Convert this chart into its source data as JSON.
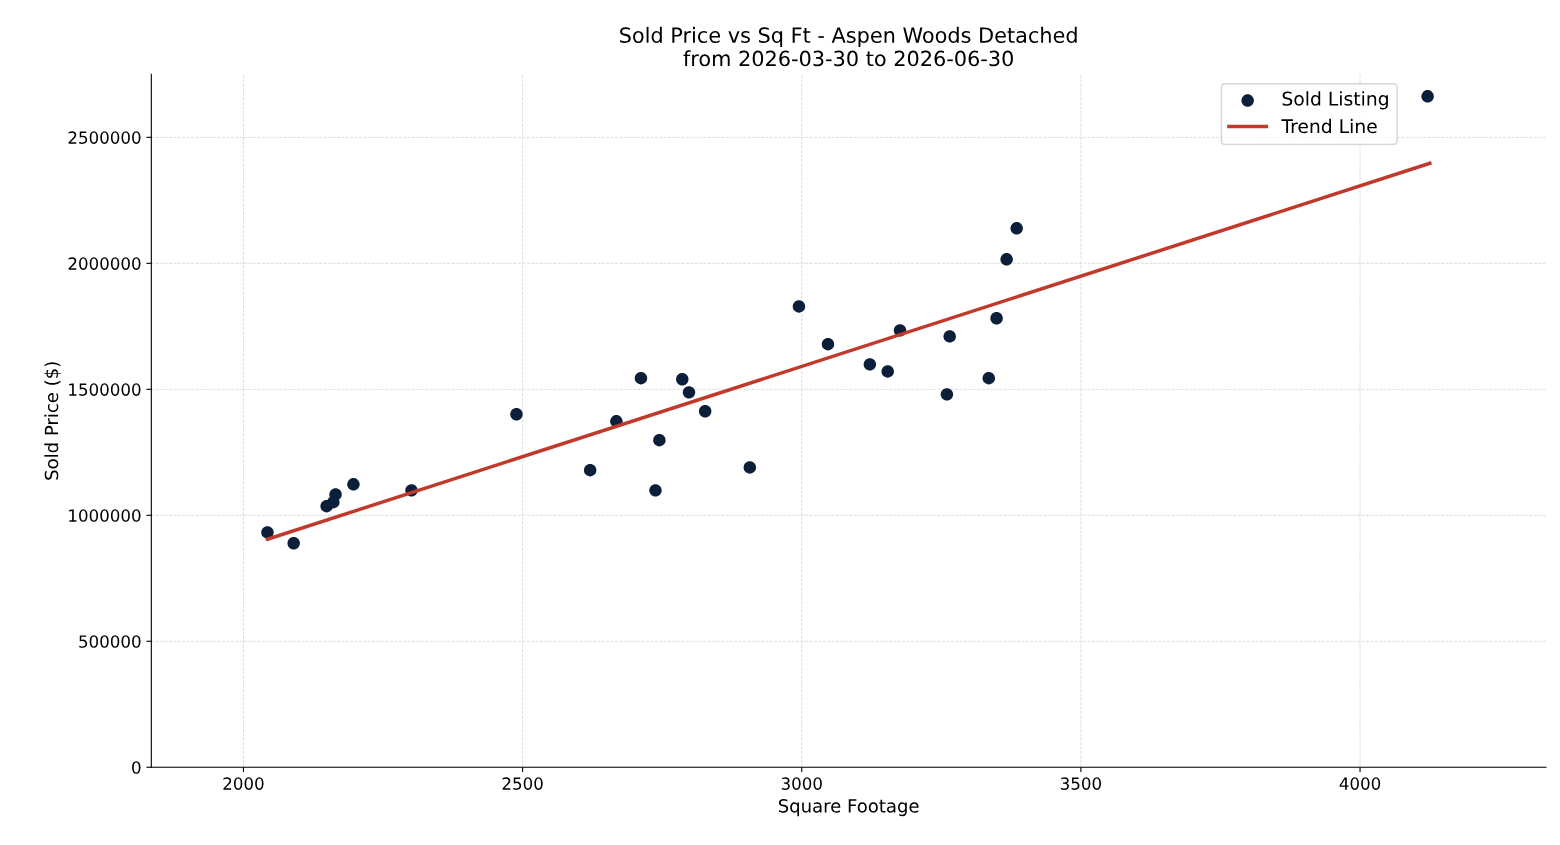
{
  "chart_data": {
    "type": "scatter",
    "title": "Sold Price vs Sq Ft - Aspen Woods Detached\nfrom 2026-03-30 to 2026-06-30",
    "xlabel": "Square Footage",
    "ylabel": "Sold Price ($)",
    "xlim": [
      1835,
      4333
    ],
    "xticks": [
      2000,
      2500,
      3000,
      3500,
      4000
    ],
    "ylim": [
      0,
      2750000
    ],
    "yticks": [
      0,
      500000,
      1000000,
      1500000,
      2000000,
      2500000
    ],
    "grid": true,
    "legend": "top right",
    "series": [
      {
        "name": "Sold Listing",
        "marker": "circle",
        "color": "#0b1f3a",
        "x": [
          2043,
          2090,
          2149,
          2161,
          2165,
          2197,
          2301,
          2489,
          2621,
          2668,
          2712,
          2738,
          2745,
          2786,
          2798,
          2827,
          2907,
          2995,
          3047,
          3122,
          3154,
          3176,
          3260,
          3265,
          3335,
          3349,
          3367,
          3385,
          4121
        ],
        "values": [
          932000,
          889000,
          1036000,
          1052000,
          1083000,
          1123000,
          1099000,
          1401000,
          1179000,
          1373000,
          1544000,
          1099000,
          1298000,
          1540000,
          1488000,
          1413000,
          1190000,
          1829000,
          1679000,
          1599000,
          1571000,
          1734000,
          1480000,
          1710000,
          1544000,
          1782000,
          2016000,
          2139000,
          2663000
        ]
      },
      {
        "name": "Trend Line",
        "type": "line",
        "color": "#c0392b",
        "line_style": "solid",
        "x": [
          2043,
          4125
        ],
        "values": [
          905000,
          2397000
        ]
      }
    ]
  }
}
